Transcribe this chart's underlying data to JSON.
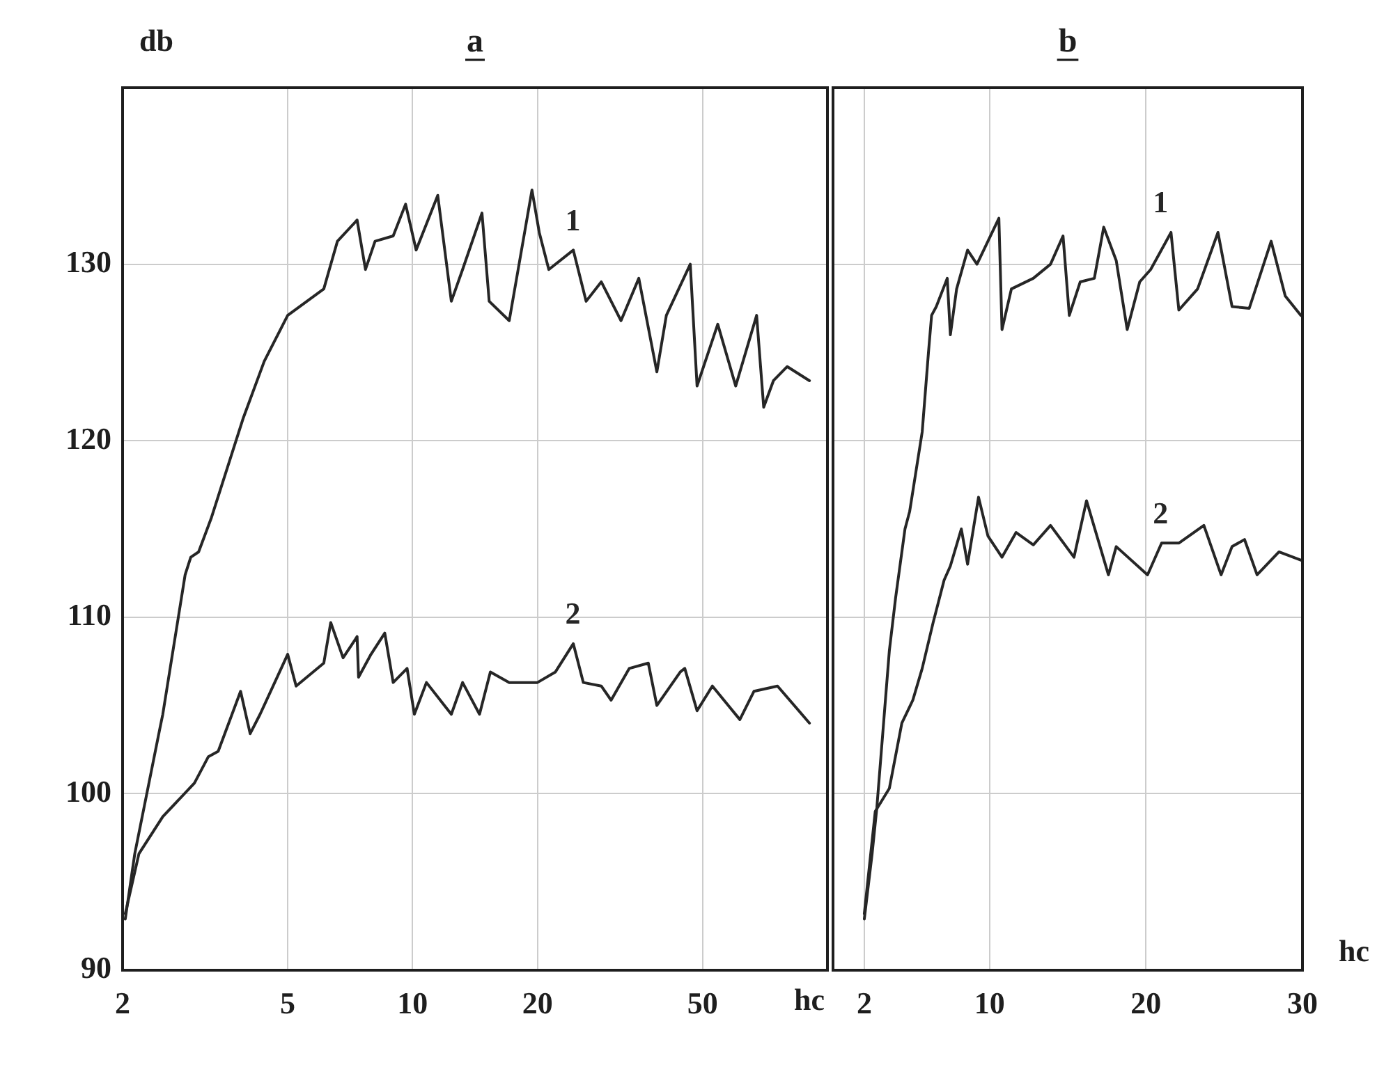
{
  "chart_data": [
    {
      "type": "line",
      "title": "a",
      "ylabel": "db",
      "xlabel": "hc",
      "log": "x",
      "xlim": [
        2,
        100
      ],
      "xticks": [
        2,
        5,
        10,
        20,
        50
      ],
      "ylim": [
        90,
        140
      ],
      "yticks": [
        90,
        100,
        110,
        120,
        130
      ],
      "grid": true,
      "marker": "none",
      "line_style": "solid",
      "series": [
        {
          "name": "1",
          "color": "#262626",
          "x": [
            2.03,
            2.14,
            2.46,
            2.5,
            2.83,
            2.92,
            3.05,
            3.27,
            3.91,
            4.39,
            5.0,
            6.11,
            6.3,
            6.59,
            7.35,
            7.7,
            8.12,
            8.98,
            9.62,
            10.2,
            11.5,
            12.4,
            13.2,
            14.7,
            15.3,
            17.1,
            19.4,
            20.2,
            21.3,
            24.4,
            26.2,
            28.5,
            31.8,
            35.1,
            38.8,
            40.9,
            46.7,
            48.5,
            54.4,
            60.1,
            67.5,
            70.2,
            74.1,
            80.0,
            90.5
          ],
          "values": [
            92.9,
            96.6,
            103.7,
            104.5,
            112.4,
            113.4,
            113.7,
            115.6,
            121.3,
            124.5,
            127.1,
            128.6,
            129.7,
            131.3,
            132.5,
            129.7,
            131.3,
            131.6,
            133.4,
            130.8,
            133.9,
            127.9,
            129.7,
            132.9,
            127.9,
            126.8,
            134.2,
            131.8,
            129.7,
            130.8,
            127.9,
            129.0,
            126.8,
            129.2,
            123.9,
            127.1,
            130.0,
            123.1,
            126.6,
            123.1,
            127.1,
            121.9,
            123.4,
            124.2,
            123.4
          ]
        },
        {
          "name": "2",
          "color": "#262626",
          "x": [
            2.03,
            2.19,
            2.5,
            2.98,
            3.22,
            3.4,
            3.85,
            4.06,
            4.29,
            5.0,
            5.24,
            6.11,
            6.35,
            6.8,
            7.35,
            7.41,
            7.94,
            8.57,
            8.98,
            9.7,
            10.1,
            10.8,
            12.4,
            13.2,
            14.5,
            15.4,
            17.1,
            20.0,
            22.1,
            24.4,
            25.8,
            28.5,
            30.1,
            33.3,
            37.0,
            38.8,
            44.2,
            45.3,
            48.5,
            52.8,
            61.5,
            66.5,
            75.8,
            90.5
          ],
          "values": [
            93.2,
            96.6,
            98.7,
            100.6,
            102.1,
            102.4,
            105.8,
            103.4,
            104.5,
            107.9,
            106.1,
            107.4,
            109.7,
            107.7,
            108.9,
            106.6,
            107.9,
            109.1,
            106.3,
            107.1,
            104.5,
            106.3,
            104.5,
            106.3,
            104.5,
            106.9,
            106.3,
            106.3,
            106.9,
            108.5,
            106.3,
            106.1,
            105.3,
            107.1,
            107.4,
            105.0,
            106.9,
            107.1,
            104.7,
            106.1,
            104.2,
            105.8,
            106.1,
            104.0
          ]
        }
      ]
    },
    {
      "type": "line",
      "title": "b",
      "xlabel": "hc",
      "xlim": [
        0,
        30
      ],
      "xticks": [
        2,
        10,
        20,
        30
      ],
      "ylim": [
        90,
        140
      ],
      "yticks": [
        90,
        100,
        110,
        120,
        130
      ],
      "tick_labels": "x",
      "grid": true,
      "marker": "none",
      "line_style": "solid",
      "series": [
        {
          "name": "1",
          "color": "#262626",
          "x": [
            2.0,
            2.5,
            2.8,
            3.6,
            4.0,
            4.6,
            4.9,
            5.7,
            6.1,
            6.3,
            6.6,
            7.3,
            7.5,
            7.9,
            8.6,
            9.2,
            9.9,
            10.6,
            10.8,
            11.4,
            12.8,
            13.9,
            14.7,
            15.1,
            15.8,
            16.7,
            17.3,
            18.1,
            18.8,
            19.6,
            20.3,
            21.6,
            22.1,
            23.3,
            24.6,
            25.5,
            26.6,
            28.0,
            28.9,
            29.9
          ],
          "values": [
            92.9,
            96.6,
            99.2,
            108.1,
            111.1,
            115.0,
            116.0,
            120.5,
            125.0,
            127.1,
            127.6,
            129.2,
            126.0,
            128.6,
            130.8,
            130.0,
            131.3,
            132.6,
            126.3,
            128.6,
            129.2,
            130.0,
            131.6,
            127.1,
            129.0,
            129.2,
            132.1,
            130.2,
            126.3,
            129.0,
            129.7,
            131.8,
            127.4,
            128.6,
            131.8,
            127.6,
            127.5,
            131.3,
            128.2,
            127.1
          ]
        },
        {
          "name": "2",
          "color": "#262626",
          "x": [
            2.0,
            2.7,
            3.6,
            4.4,
            5.1,
            5.7,
            6.4,
            7.1,
            7.5,
            8.2,
            8.6,
            9.3,
            9.9,
            10.8,
            11.7,
            12.8,
            13.9,
            15.4,
            16.2,
            17.6,
            18.1,
            20.1,
            21.0,
            22.1,
            23.7,
            24.8,
            25.5,
            26.3,
            27.1,
            28.5,
            30.0
          ],
          "values": [
            93.2,
            99.0,
            100.3,
            104.0,
            105.3,
            107.1,
            109.7,
            112.1,
            112.9,
            115.0,
            113.0,
            116.8,
            114.6,
            113.4,
            114.8,
            114.1,
            115.2,
            113.4,
            116.6,
            112.4,
            114.0,
            112.4,
            114.2,
            114.2,
            115.2,
            112.4,
            114.0,
            114.4,
            112.4,
            113.7,
            113.2
          ]
        }
      ]
    }
  ]
}
